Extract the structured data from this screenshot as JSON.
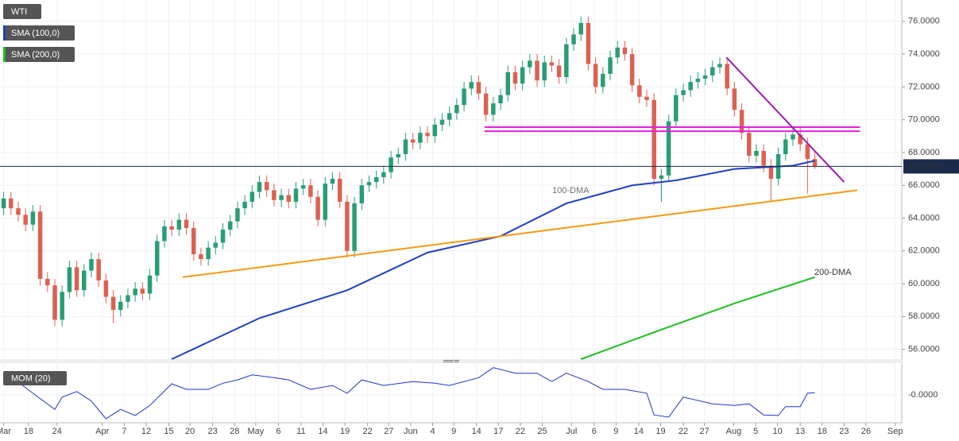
{
  "chart_data": [
    {
      "type": "candlestick",
      "name": "WTI",
      "up_color": "#2a9d74",
      "down_color": "#dc6152",
      "xlim": [
        -0.5,
        122.9
      ],
      "ylim": [
        55.4,
        77.3
      ],
      "xticks": [
        {
          "value": 0,
          "label": "Mar"
        },
        {
          "value": 3.4,
          "label": "18"
        },
        {
          "value": 7.3,
          "label": "24"
        },
        {
          "value": 13.5,
          "label": "Apr"
        },
        {
          "value": 16.5,
          "label": "7"
        },
        {
          "value": 19.5,
          "label": "12"
        },
        {
          "value": 22.6,
          "label": "15"
        },
        {
          "value": 25.5,
          "label": "20"
        },
        {
          "value": 28.6,
          "label": "23"
        },
        {
          "value": 31.6,
          "label": "28"
        },
        {
          "value": 34.5,
          "label": "May"
        },
        {
          "value": 37.6,
          "label": "6"
        },
        {
          "value": 40.7,
          "label": "11"
        },
        {
          "value": 43.7,
          "label": "14"
        },
        {
          "value": 46.7,
          "label": "19"
        },
        {
          "value": 49.8,
          "label": "22"
        },
        {
          "value": 52.7,
          "label": "27"
        },
        {
          "value": 55.7,
          "label": "Jun"
        },
        {
          "value": 58.7,
          "label": "4"
        },
        {
          "value": 61.6,
          "label": "9"
        },
        {
          "value": 64.7,
          "label": "14"
        },
        {
          "value": 67.7,
          "label": "17"
        },
        {
          "value": 70.7,
          "label": "22"
        },
        {
          "value": 73.7,
          "label": "25"
        },
        {
          "value": 77.7,
          "label": "Jul"
        },
        {
          "value": 80.8,
          "label": "6"
        },
        {
          "value": 83.8,
          "label": "9"
        },
        {
          "value": 86.9,
          "label": "14"
        },
        {
          "value": 89.9,
          "label": "19"
        },
        {
          "value": 93,
          "label": "22"
        },
        {
          "value": 95.9,
          "label": "27"
        },
        {
          "value": 99.9,
          "label": "Aug"
        },
        {
          "value": 102.9,
          "label": "5"
        },
        {
          "value": 105.9,
          "label": "10"
        },
        {
          "value": 109,
          "label": "13"
        },
        {
          "value": 112,
          "label": "18"
        },
        {
          "value": 115,
          "label": "23"
        },
        {
          "value": 118,
          "label": "26"
        },
        {
          "value": 122,
          "label": "Sep"
        }
      ],
      "yticks": [
        {
          "value": 56,
          "label": "56.0000"
        },
        {
          "value": 58,
          "label": "58.0000"
        },
        {
          "value": 60,
          "label": "60.0000"
        },
        {
          "value": 62,
          "label": "62.0000"
        },
        {
          "value": 64,
          "label": "64.0000"
        },
        {
          "value": 66,
          "label": "66.0000"
        },
        {
          "value": 68,
          "label": "68.0000"
        },
        {
          "value": 70,
          "label": "70.0000"
        },
        {
          "value": 72,
          "label": "72.0000"
        },
        {
          "value": 74,
          "label": "74.0000"
        },
        {
          "value": 76,
          "label": "76.0000"
        }
      ],
      "grid": true,
      "open": [
        64.6,
        65.2,
        64.6,
        64.2,
        63.6,
        64.4,
        60.3,
        59.9,
        57.8,
        59.5,
        61.0,
        59.6,
        60.8,
        61.5,
        60.2,
        59.2,
        58.4,
        58.9,
        59.3,
        59.7,
        59.4,
        60.5,
        62.6,
        63.5,
        63.3,
        63.9,
        63.4,
        61.8,
        61.5,
        62.2,
        62.5,
        63.3,
        63.8,
        64.6,
        65.0,
        65.6,
        66.2,
        65.7,
        65.1,
        65.4,
        65.0,
        65.8,
        66.0,
        65.3,
        63.9,
        66.1,
        66.4,
        65.0,
        62.0,
        64.9,
        66.0,
        66.2,
        66.5,
        66.8,
        67.7,
        67.9,
        68.8,
        68.6,
        69.2,
        69.0,
        69.7,
        70.0,
        70.4,
        70.9,
        71.9,
        72.3,
        71.6,
        70.3,
        71.0,
        71.5,
        72.9,
        72.2,
        73.2,
        73.6,
        72.4,
        73.5,
        73.3,
        72.6,
        74.6,
        75.2,
        75.9,
        73.4,
        72.0,
        72.8,
        73.8,
        74.4,
        74.0,
        72.1,
        71.4,
        71.2,
        66.4,
        66.6,
        69.9,
        71.5,
        71.8,
        72.3,
        72.5,
        72.7,
        73.2,
        73.4,
        71.9,
        70.6,
        69.2,
        67.8,
        68.1,
        67.2,
        66.4,
        67.9,
        68.8,
        69.1,
        68.5,
        67.6
      ],
      "high": [
        65.6,
        65.6,
        65.0,
        64.6,
        64.8,
        64.8,
        60.7,
        60.3,
        59.9,
        61.4,
        61.4,
        61.2,
        61.9,
        61.9,
        60.6,
        59.6,
        59.3,
        59.7,
        60.1,
        60.1,
        60.9,
        63.0,
        63.9,
        63.9,
        64.3,
        64.3,
        63.8,
        62.2,
        62.6,
        62.9,
        63.7,
        64.2,
        65.0,
        65.4,
        66.0,
        66.6,
        66.6,
        66.1,
        65.8,
        65.8,
        66.2,
        66.4,
        66.4,
        65.7,
        66.5,
        66.8,
        66.8,
        65.4,
        65.3,
        66.4,
        66.6,
        66.9,
        67.2,
        68.1,
        68.3,
        69.2,
        69.2,
        69.6,
        69.6,
        70.1,
        70.4,
        70.8,
        71.3,
        72.3,
        72.7,
        72.7,
        72.0,
        71.4,
        71.9,
        73.3,
        73.3,
        73.6,
        74.0,
        74.0,
        73.9,
        73.9,
        73.7,
        75.0,
        75.6,
        76.3,
        76.3,
        73.8,
        73.2,
        74.2,
        74.8,
        74.8,
        74.4,
        72.5,
        71.8,
        71.6,
        67.0,
        70.3,
        71.9,
        72.2,
        72.7,
        72.9,
        73.1,
        73.6,
        73.8,
        73.8,
        72.3,
        71.0,
        69.6,
        68.5,
        68.5,
        67.6,
        68.3,
        69.2,
        69.5,
        69.5,
        68.9,
        68.0
      ],
      "low": [
        64.2,
        64.2,
        63.8,
        63.2,
        63.2,
        59.9,
        59.5,
        57.4,
        57.4,
        59.1,
        59.2,
        59.2,
        60.4,
        59.8,
        58.8,
        57.6,
        58.0,
        58.5,
        58.9,
        59.0,
        59.0,
        60.1,
        62.2,
        62.9,
        62.9,
        63.0,
        61.4,
        61.1,
        61.1,
        61.8,
        62.1,
        62.9,
        63.4,
        64.2,
        64.6,
        65.2,
        65.3,
        64.7,
        64.7,
        64.6,
        64.6,
        65.4,
        64.9,
        63.5,
        63.5,
        65.7,
        64.6,
        61.6,
        61.6,
        64.5,
        65.6,
        65.8,
        66.1,
        66.4,
        67.3,
        67.5,
        68.2,
        68.2,
        68.6,
        68.6,
        69.3,
        69.6,
        70.0,
        70.5,
        71.5,
        71.2,
        69.9,
        69.9,
        70.6,
        71.1,
        71.8,
        71.8,
        72.8,
        72.0,
        72.0,
        72.9,
        72.2,
        72.2,
        74.2,
        74.8,
        73.0,
        71.6,
        71.6,
        72.4,
        73.4,
        73.6,
        71.7,
        71.0,
        70.8,
        66.0,
        65.0,
        66.2,
        69.5,
        71.1,
        71.4,
        71.9,
        72.1,
        72.3,
        72.8,
        71.5,
        70.2,
        68.8,
        67.4,
        67.4,
        66.8,
        65.0,
        66.0,
        67.5,
        68.4,
        68.1,
        65.5,
        67.0
      ],
      "close": [
        65.2,
        64.6,
        64.2,
        63.6,
        64.4,
        60.3,
        59.9,
        57.8,
        59.5,
        61.0,
        59.6,
        60.8,
        61.5,
        60.2,
        59.2,
        58.4,
        58.9,
        59.3,
        59.7,
        59.4,
        60.5,
        62.6,
        63.5,
        63.3,
        63.9,
        63.4,
        61.8,
        61.5,
        62.2,
        62.5,
        63.3,
        63.8,
        64.6,
        65.0,
        65.6,
        66.2,
        65.7,
        65.1,
        65.4,
        65.0,
        65.8,
        66.0,
        65.3,
        63.9,
        66.1,
        66.4,
        65.0,
        62.0,
        64.9,
        66.0,
        66.2,
        66.5,
        66.8,
        67.7,
        67.9,
        68.8,
        68.6,
        69.2,
        69.0,
        69.7,
        70.0,
        70.4,
        70.9,
        71.9,
        72.3,
        71.6,
        70.3,
        71.0,
        71.5,
        72.9,
        72.2,
        73.2,
        73.6,
        72.4,
        73.5,
        73.3,
        72.6,
        74.6,
        75.2,
        75.9,
        73.4,
        72.0,
        72.8,
        73.8,
        74.4,
        74.0,
        72.1,
        71.4,
        71.2,
        66.4,
        66.6,
        69.9,
        71.5,
        71.8,
        72.3,
        72.5,
        72.7,
        73.2,
        73.4,
        71.9,
        70.6,
        69.2,
        67.8,
        68.1,
        67.2,
        66.4,
        67.9,
        68.8,
        69.1,
        68.5,
        67.6,
        67.15
      ],
      "series": [
        {
          "name": "SMA (100,0)",
          "color": "#1f3fc4",
          "x": [
            23,
            35,
            47,
            58,
            68,
            77,
            86,
            92,
            100,
            108,
            111
          ],
          "values": [
            55.4,
            57.9,
            59.6,
            61.9,
            62.9,
            64.9,
            66.0,
            66.3,
            67.0,
            67.2,
            67.5
          ]
        },
        {
          "name": "SMA (200,0)",
          "color": "#1fbf1f",
          "x": [
            79,
            90,
            100,
            111
          ],
          "values": [
            55.4,
            57.2,
            58.8,
            60.4
          ]
        }
      ],
      "trendlines": [
        {
          "color": "#f59a12",
          "x": [
            24.5,
            116.8
          ],
          "values": [
            60.4,
            65.7
          ]
        },
        {
          "color": "#e81ce0",
          "x": [
            65.8,
            117.2
          ],
          "values": [
            69.55,
            69.55
          ]
        },
        {
          "color": "#e81ce0",
          "x": [
            65.8,
            117.2
          ],
          "values": [
            69.3,
            69.3
          ]
        },
        {
          "color": "#9a1fa8",
          "x": [
            98.9,
            115
          ],
          "values": [
            73.8,
            66.2
          ]
        }
      ],
      "annotations": [
        "100-DMA",
        "200-DMA"
      ],
      "last_price": {
        "value": 67.153,
        "label": "67.1530"
      }
    },
    {
      "type": "line",
      "title": "MOM (20)",
      "color": "#2233cc",
      "ylim": [
        -5,
        5
      ],
      "yticks": [
        {
          "value": 0,
          "label": "-0.0000"
        }
      ],
      "x": [
        0,
        2,
        4,
        7,
        8,
        10,
        12,
        14,
        16,
        18,
        20,
        23,
        25,
        28,
        30,
        32,
        34,
        37,
        39,
        42,
        45,
        47,
        49,
        52,
        56,
        59,
        61,
        65,
        67,
        70,
        73,
        75,
        77,
        80,
        82,
        85,
        88,
        89,
        91,
        93,
        97,
        100,
        102,
        104,
        106,
        107,
        109,
        110,
        111
      ],
      "values": [
        3.9,
        2.3,
        0.3,
        -2.6,
        -0.4,
        0.6,
        -1.1,
        -4.3,
        -2.6,
        -3.7,
        -1.9,
        2.0,
        1.0,
        1.0,
        2.1,
        2.7,
        3.6,
        3.1,
        2.7,
        1.0,
        1.7,
        0.3,
        2.7,
        1.7,
        2.4,
        2.1,
        1.7,
        3.1,
        4.9,
        3.9,
        3.9,
        2.4,
        3.9,
        2.4,
        1.0,
        1.0,
        0.3,
        -3.6,
        -4.0,
        -0.4,
        -1.6,
        -1.9,
        -1.6,
        -3.6,
        -3.7,
        -2.1,
        -2.1,
        0.3,
        0.4
      ]
    }
  ]
}
